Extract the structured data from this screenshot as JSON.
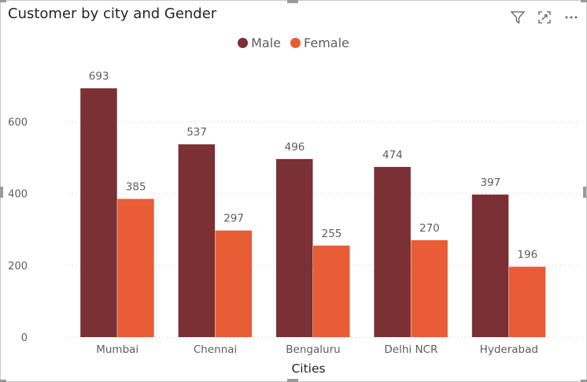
{
  "visual": {
    "title": "Customer by city and Gender",
    "icons": [
      "filter-icon",
      "focus-mode-icon",
      "more-options-icon"
    ]
  },
  "legend": [
    {
      "name": "Male",
      "color": "#7a3034"
    },
    {
      "name": "Female",
      "color": "#e85c36"
    }
  ],
  "chart_data": {
    "type": "bar",
    "title": "Customer by city and Gender",
    "xlabel": "Cities",
    "ylabel": "",
    "categories": [
      "Mumbai",
      "Chennai",
      "Bengaluru",
      "Delhi NCR",
      "Hyderabad"
    ],
    "series": [
      {
        "name": "Male",
        "color": "#7a3034",
        "values": [
          693,
          537,
          496,
          474,
          397
        ]
      },
      {
        "name": "Female",
        "color": "#e85c36",
        "values": [
          385,
          297,
          255,
          270,
          196
        ]
      }
    ],
    "yticks": [
      0,
      200,
      400,
      600
    ],
    "ylim": [
      0,
      700
    ],
    "grid": true,
    "legend_position": "top-center",
    "data_labels": true
  }
}
